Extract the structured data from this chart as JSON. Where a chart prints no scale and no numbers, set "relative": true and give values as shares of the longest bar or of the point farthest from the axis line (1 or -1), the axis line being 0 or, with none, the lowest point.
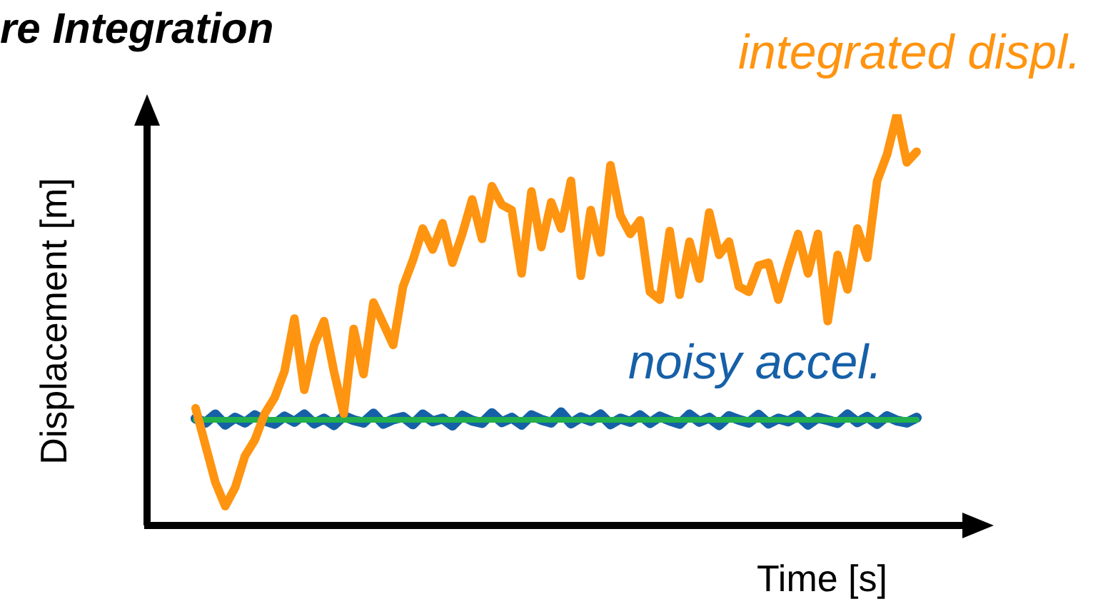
{
  "chart_data": {
    "type": "line",
    "title": "re Integration",
    "xlabel": "Time [s]",
    "ylabel": "Displacement [m]",
    "relative": true,
    "marker": "none",
    "categories": [
      null,
      null,
      null,
      null,
      null,
      null,
      null,
      null,
      null,
      null,
      null,
      null,
      null,
      null,
      null,
      null,
      null,
      null,
      null,
      null,
      null,
      null,
      null,
      null,
      null,
      null,
      null,
      null,
      null,
      null,
      null,
      null,
      null,
      null,
      null,
      null,
      null,
      null,
      null,
      null,
      null,
      null,
      null,
      null,
      null,
      null,
      null,
      null,
      null,
      null,
      null,
      null,
      null,
      null,
      null,
      null,
      null,
      null,
      null,
      null,
      null,
      null,
      null,
      null,
      null,
      null,
      null,
      null,
      null,
      null,
      null,
      null,
      null,
      null
    ],
    "series": [
      {
        "name": "noisy accel.",
        "color": "#1660a8",
        "values": [
          0.26,
          0.25,
          0.27,
          0.245,
          0.262,
          0.25,
          0.268,
          0.255,
          0.247,
          0.265,
          0.252,
          0.27,
          0.248,
          0.26,
          0.244,
          0.266,
          0.256,
          0.25,
          0.272,
          0.247,
          0.258,
          0.264,
          0.246,
          0.27,
          0.253,
          0.26,
          0.243,
          0.267,
          0.255,
          0.249,
          0.273,
          0.251,
          0.262,
          0.245,
          0.268,
          0.257,
          0.25,
          0.275,
          0.248,
          0.263,
          0.254,
          0.27,
          0.246,
          0.26,
          0.252,
          0.268,
          0.249,
          0.265,
          0.255,
          0.247,
          0.27,
          0.252,
          0.262,
          0.244,
          0.266,
          0.257,
          0.25,
          0.269,
          0.248,
          0.26,
          0.253,
          0.267,
          0.245,
          0.262,
          0.256,
          0.249,
          0.27,
          0.251,
          0.264,
          0.247,
          0.266,
          0.255,
          0.25,
          0.262
        ]
      },
      {
        "color": "#22b14c",
        "values": [
          0.257,
          0.257,
          0.257,
          0.257,
          0.257,
          0.257,
          0.257,
          0.257,
          0.257,
          0.257,
          0.257,
          0.257,
          0.257,
          0.257,
          0.257,
          0.257,
          0.257,
          0.257,
          0.257,
          0.257,
          0.257,
          0.257,
          0.257,
          0.257,
          0.257,
          0.257,
          0.257,
          0.257,
          0.257,
          0.257,
          0.257,
          0.257,
          0.257,
          0.257,
          0.257,
          0.257,
          0.257,
          0.257,
          0.257,
          0.257,
          0.257,
          0.257,
          0.257,
          0.257,
          0.257,
          0.257,
          0.257,
          0.257,
          0.257,
          0.257,
          0.257,
          0.257,
          0.257,
          0.257,
          0.257,
          0.257,
          0.257,
          0.257,
          0.257,
          0.257,
          0.257,
          0.257,
          0.257,
          0.257,
          0.257,
          0.257,
          0.257,
          0.257,
          0.257,
          0.257,
          0.257,
          0.257,
          0.257,
          0.257
        ]
      },
      {
        "name": "integrated displ.",
        "color": "#ff9410",
        "values": [
          0.285,
          0.195,
          0.105,
          0.047,
          0.092,
          0.169,
          0.208,
          0.272,
          0.311,
          0.375,
          0.503,
          0.33,
          0.439,
          0.497,
          0.375,
          0.272,
          0.478,
          0.368,
          0.542,
          0.491,
          0.439,
          0.581,
          0.645,
          0.722,
          0.671,
          0.735,
          0.639,
          0.709,
          0.793,
          0.697,
          0.825,
          0.78,
          0.767,
          0.613,
          0.812,
          0.677,
          0.786,
          0.722,
          0.838,
          0.607,
          0.767,
          0.664,
          0.876,
          0.754,
          0.709,
          0.742,
          0.568,
          0.549,
          0.716,
          0.561,
          0.69,
          0.6,
          0.761,
          0.658,
          0.69,
          0.581,
          0.568,
          0.632,
          0.639,
          0.549,
          0.632,
          0.709,
          0.613,
          0.709,
          0.497,
          0.658,
          0.574,
          0.722,
          0.651,
          0.838,
          0.902,
          1,
          0.883,
          0.909
        ]
      }
    ]
  }
}
